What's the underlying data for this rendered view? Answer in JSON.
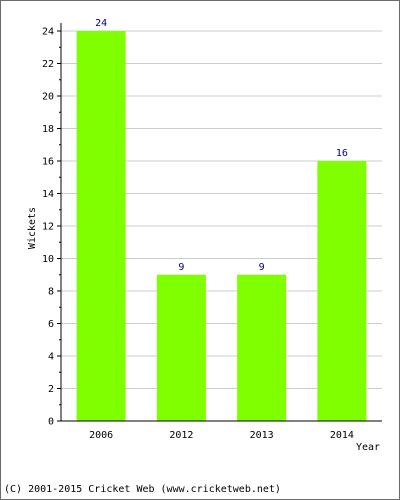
{
  "chart_data": {
    "type": "bar",
    "categories": [
      "2006",
      "2012",
      "2013",
      "2014"
    ],
    "values": [
      24,
      9,
      9,
      16
    ],
    "data_labels": [
      "24",
      "9",
      "9",
      "16"
    ],
    "title": "",
    "xlabel": "Year",
    "ylabel": "Wickets",
    "ylim": [
      0,
      24
    ],
    "y_ticks": [
      "0",
      "2",
      "4",
      "6",
      "8",
      "10",
      "12",
      "14",
      "16",
      "18",
      "20",
      "22",
      "24"
    ],
    "grid": true,
    "legend": "none",
    "colors": {
      "bar": "#80ff00",
      "data_label": "#000080",
      "grid": "#cccccc",
      "axis": "#000000",
      "frame": "#6b6b6b"
    }
  },
  "footer": {
    "copyright": "(C) 2001-2015 Cricket Web (www.cricketweb.net)"
  }
}
